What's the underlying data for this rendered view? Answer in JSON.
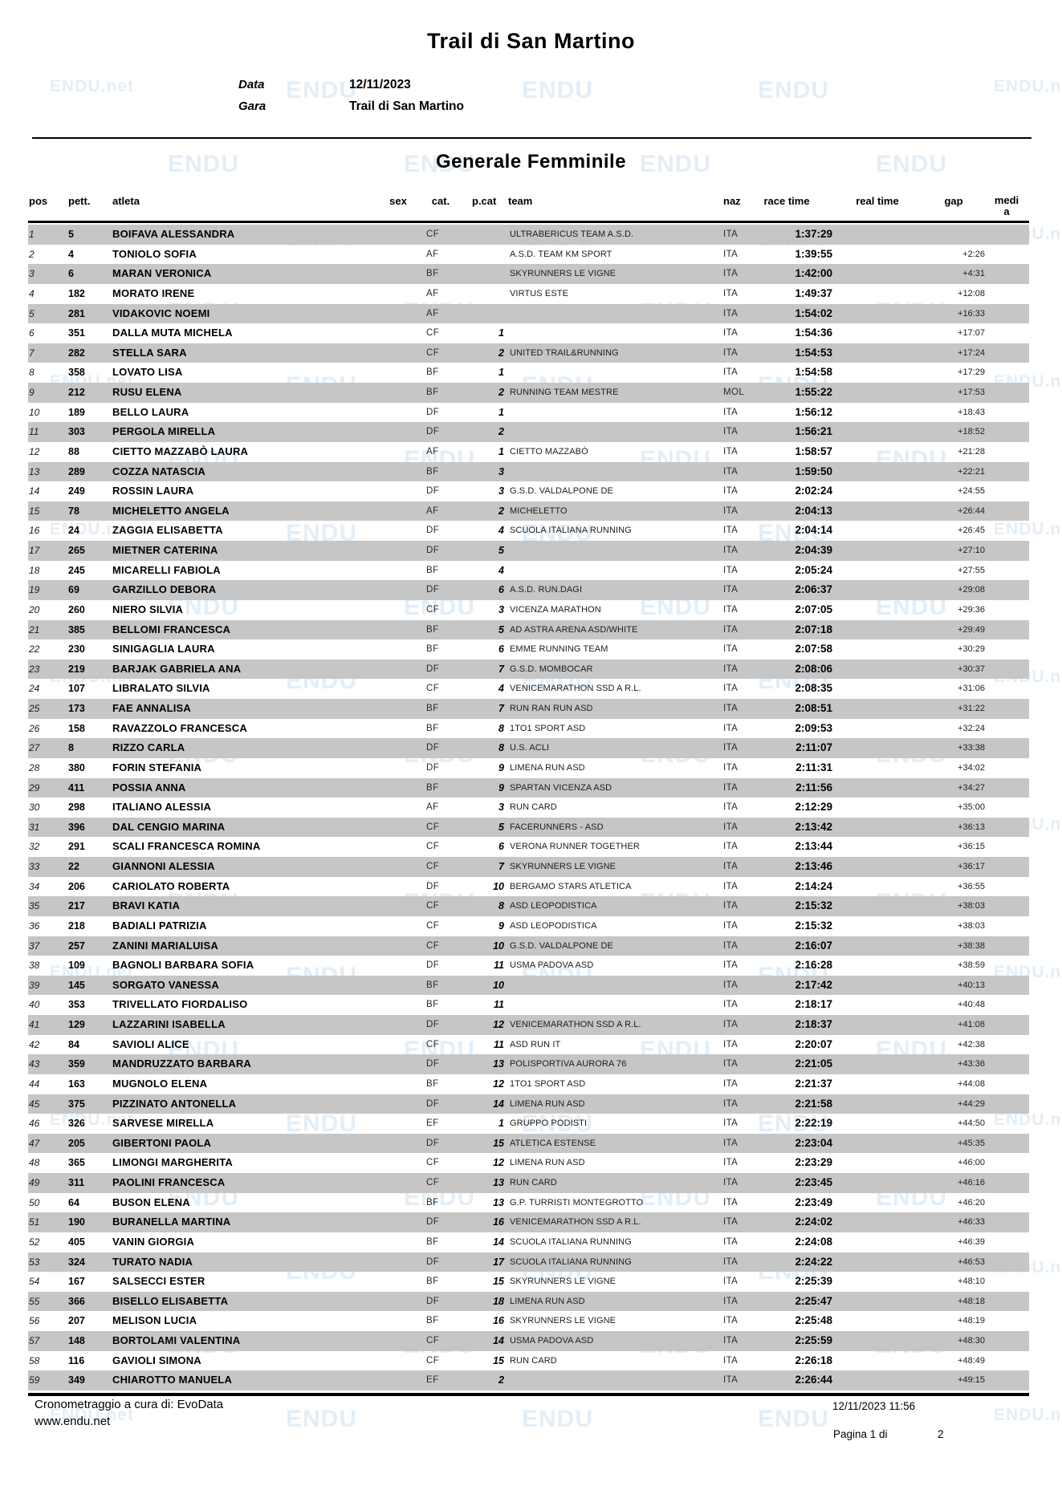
{
  "header": {
    "title": "Trail di San Martino",
    "data_label": "Data",
    "data_value": "12/11/2023",
    "gara_label": "Gara",
    "gara_value": "Trail di San Martino"
  },
  "section_title": "Generale Femminile",
  "watermark": {
    "primary": "ENDU",
    "secondary": "ENDU.net"
  },
  "table": {
    "columns": {
      "pos": "pos",
      "pett": "pett.",
      "atleta": "atleta",
      "sex": "sex",
      "cat": "cat.",
      "pcat": "p.cat",
      "team": "team",
      "naz": "naz",
      "race_time": "race time",
      "real_time": "real time",
      "gap": "gap",
      "media_line1": "medi",
      "media_line2": "a"
    },
    "rows": [
      [
        "1",
        "5",
        "BOIFAVA ALESSANDRA",
        "CF",
        "",
        "ULTRABERICUS TEAM A.S.D.",
        "ITA",
        "1:37:29",
        ""
      ],
      [
        "2",
        "4",
        "TONIOLO SOFIA",
        "AF",
        "",
        "A.S.D. TEAM KM SPORT",
        "ITA",
        "1:39:55",
        "+2:26"
      ],
      [
        "3",
        "6",
        "MARAN VERONICA",
        "BF",
        "",
        "SKYRUNNERS LE VIGNE",
        "ITA",
        "1:42:00",
        "+4:31"
      ],
      [
        "4",
        "182",
        "MORATO IRENE",
        "AF",
        "",
        "VIRTUS ESTE",
        "ITA",
        "1:49:37",
        "+12:08"
      ],
      [
        "5",
        "281",
        "VIDAKOVIC NOEMI",
        "AF",
        "",
        "",
        "ITA",
        "1:54:02",
        "+16:33"
      ],
      [
        "6",
        "351",
        "DALLA MUTA MICHELA",
        "CF",
        "1",
        "",
        "ITA",
        "1:54:36",
        "+17:07"
      ],
      [
        "7",
        "282",
        "STELLA SARA",
        "CF",
        "2",
        "UNITED TRAIL&RUNNING",
        "ITA",
        "1:54:53",
        "+17:24"
      ],
      [
        "8",
        "358",
        "LOVATO LISA",
        "BF",
        "1",
        "",
        "ITA",
        "1:54:58",
        "+17:29"
      ],
      [
        "9",
        "212",
        "RUSU ELENA",
        "BF",
        "2",
        "RUNNING TEAM MESTRE",
        "MOL",
        "1:55:22",
        "+17:53"
      ],
      [
        "10",
        "189",
        "BELLO LAURA",
        "DF",
        "1",
        "",
        "ITA",
        "1:56:12",
        "+18:43"
      ],
      [
        "11",
        "303",
        "PERGOLA MIRELLA",
        "DF",
        "2",
        "",
        "ITA",
        "1:56:21",
        "+18:52"
      ],
      [
        "12",
        "88",
        "CIETTO MAZZABÒ LAURA",
        "AF",
        "1",
        "CIETTO MAZZABÒ",
        "ITA",
        "1:58:57",
        "+21:28"
      ],
      [
        "13",
        "289",
        "COZZA NATASCIA",
        "BF",
        "3",
        "",
        "ITA",
        "1:59:50",
        "+22:21"
      ],
      [
        "14",
        "249",
        "ROSSIN LAURA",
        "DF",
        "3",
        "G.S.D. VALDALPONE DE",
        "ITA",
        "2:02:24",
        "+24:55"
      ],
      [
        "15",
        "78",
        "MICHELETTO ANGELA",
        "AF",
        "2",
        "MICHELETTO",
        "ITA",
        "2:04:13",
        "+26:44"
      ],
      [
        "16",
        "24",
        "ZAGGIA ELISABETTA",
        "DF",
        "4",
        "SCUOLA ITALIANA RUNNING",
        "ITA",
        "2:04:14",
        "+26:45"
      ],
      [
        "17",
        "265",
        "MIETNER CATERINA",
        "DF",
        "5",
        "",
        "ITA",
        "2:04:39",
        "+27:10"
      ],
      [
        "18",
        "245",
        "MICARELLI FABIOLA",
        "BF",
        "4",
        "",
        "ITA",
        "2:05:24",
        "+27:55"
      ],
      [
        "19",
        "69",
        "GARZILLO DEBORA",
        "DF",
        "6",
        "A.S.D. RUN.DAGI",
        "ITA",
        "2:06:37",
        "+29:08"
      ],
      [
        "20",
        "260",
        "NIERO SILVIA",
        "CF",
        "3",
        "VICENZA MARATHON",
        "ITA",
        "2:07:05",
        "+29:36"
      ],
      [
        "21",
        "385",
        "BELLOMI FRANCESCA",
        "BF",
        "5",
        "AD ASTRA ARENA ASD/WHITE",
        "ITA",
        "2:07:18",
        "+29:49"
      ],
      [
        "22",
        "230",
        "SINIGAGLIA LAURA",
        "BF",
        "6",
        "EMME RUNNING TEAM",
        "ITA",
        "2:07:58",
        "+30:29"
      ],
      [
        "23",
        "219",
        "BARJAK GABRIELA ANA",
        "DF",
        "7",
        "G.S.D. MOMBOCAR",
        "ITA",
        "2:08:06",
        "+30:37"
      ],
      [
        "24",
        "107",
        "LIBRALATO SILVIA",
        "CF",
        "4",
        "VENICEMARATHON SSD A R.L.",
        "ITA",
        "2:08:35",
        "+31:06"
      ],
      [
        "25",
        "173",
        "FAE ANNALISA",
        "BF",
        "7",
        "RUN RAN RUN ASD",
        "ITA",
        "2:08:51",
        "+31:22"
      ],
      [
        "26",
        "158",
        "RAVAZZOLO FRANCESCA",
        "BF",
        "8",
        "1TO1 SPORT ASD",
        "ITA",
        "2:09:53",
        "+32:24"
      ],
      [
        "27",
        "8",
        "RIZZO CARLA",
        "DF",
        "8",
        "U.S. ACLI",
        "ITA",
        "2:11:07",
        "+33:38"
      ],
      [
        "28",
        "380",
        "FORIN STEFANIA",
        "DF",
        "9",
        "LIMENA RUN ASD",
        "ITA",
        "2:11:31",
        "+34:02"
      ],
      [
        "29",
        "411",
        "POSSIA ANNA",
        "BF",
        "9",
        "SPARTAN VICENZA ASD",
        "ITA",
        "2:11:56",
        "+34:27"
      ],
      [
        "30",
        "298",
        "ITALIANO ALESSIA",
        "AF",
        "3",
        "RUN CARD",
        "ITA",
        "2:12:29",
        "+35:00"
      ],
      [
        "31",
        "396",
        "DAL CENGIO MARINA",
        "CF",
        "5",
        "FACERUNNERS - ASD",
        "ITA",
        "2:13:42",
        "+36:13"
      ],
      [
        "32",
        "291",
        "SCALI FRANCESCA ROMINA",
        "CF",
        "6",
        "VERONA RUNNER TOGETHER",
        "ITA",
        "2:13:44",
        "+36:15"
      ],
      [
        "33",
        "22",
        "GIANNONI ALESSIA",
        "CF",
        "7",
        "SKYRUNNERS LE VIGNE",
        "ITA",
        "2:13:46",
        "+36:17"
      ],
      [
        "34",
        "206",
        "CARIOLATO ROBERTA",
        "DF",
        "10",
        "BERGAMO STARS ATLETICA",
        "ITA",
        "2:14:24",
        "+36:55"
      ],
      [
        "35",
        "217",
        "BRAVI KATIA",
        "CF",
        "8",
        "ASD LEOPODISTICA",
        "ITA",
        "2:15:32",
        "+38:03"
      ],
      [
        "36",
        "218",
        "BADIALI PATRIZIA",
        "CF",
        "9",
        "ASD LEOPODISTICA",
        "ITA",
        "2:15:32",
        "+38:03"
      ],
      [
        "37",
        "257",
        "ZANINI MARIALUISA",
        "CF",
        "10",
        "G.S.D. VALDALPONE DE",
        "ITA",
        "2:16:07",
        "+38:38"
      ],
      [
        "38",
        "109",
        "BAGNOLI BARBARA SOFIA",
        "DF",
        "11",
        "USMA PADOVA ASD",
        "ITA",
        "2:16:28",
        "+38:59"
      ],
      [
        "39",
        "145",
        "SORGATO VANESSA",
        "BF",
        "10",
        "",
        "ITA",
        "2:17:42",
        "+40:13"
      ],
      [
        "40",
        "353",
        "TRIVELLATO FIORDALISO",
        "BF",
        "11",
        "",
        "ITA",
        "2:18:17",
        "+40:48"
      ],
      [
        "41",
        "129",
        "LAZZARINI ISABELLA",
        "DF",
        "12",
        "VENICEMARATHON SSD A R.L.",
        "ITA",
        "2:18:37",
        "+41:08"
      ],
      [
        "42",
        "84",
        "SAVIOLI ALICE",
        "CF",
        "11",
        "ASD RUN IT",
        "ITA",
        "2:20:07",
        "+42:38"
      ],
      [
        "43",
        "359",
        "MANDRUZZATO BARBARA",
        "DF",
        "13",
        "POLISPORTIVA AURORA 76",
        "ITA",
        "2:21:05",
        "+43:36"
      ],
      [
        "44",
        "163",
        "MUGNOLO ELENA",
        "BF",
        "12",
        "1TO1 SPORT ASD",
        "ITA",
        "2:21:37",
        "+44:08"
      ],
      [
        "45",
        "375",
        "PIZZINATO ANTONELLA",
        "DF",
        "14",
        "LIMENA RUN ASD",
        "ITA",
        "2:21:58",
        "+44:29"
      ],
      [
        "46",
        "326",
        "SARVESE MIRELLA",
        "EF",
        "1",
        "GRUPPO PODISTI",
        "ITA",
        "2:22:19",
        "+44:50"
      ],
      [
        "47",
        "205",
        "GIBERTONI PAOLA",
        "DF",
        "15",
        "ATLETICA ESTENSE",
        "ITA",
        "2:23:04",
        "+45:35"
      ],
      [
        "48",
        "365",
        "LIMONGI MARGHERITA",
        "CF",
        "12",
        "LIMENA RUN ASD",
        "ITA",
        "2:23:29",
        "+46:00"
      ],
      [
        "49",
        "311",
        "PAOLINI FRANCESCA",
        "CF",
        "13",
        "RUN CARD",
        "ITA",
        "2:23:45",
        "+46:16"
      ],
      [
        "50",
        "64",
        "BUSON ELENA",
        "BF",
        "13",
        "G.P. TURRISTI MONTEGROTTO",
        "ITA",
        "2:23:49",
        "+46:20"
      ],
      [
        "51",
        "190",
        "BURANELLA MARTINA",
        "DF",
        "16",
        "VENICEMARATHON SSD A R.L.",
        "ITA",
        "2:24:02",
        "+46:33"
      ],
      [
        "52",
        "405",
        "VANIN GIORGIA",
        "BF",
        "14",
        "SCUOLA ITALIANA RUNNING",
        "ITA",
        "2:24:08",
        "+46:39"
      ],
      [
        "53",
        "324",
        "TURATO NADIA",
        "DF",
        "17",
        "SCUOLA ITALIANA RUNNING",
        "ITA",
        "2:24:22",
        "+46:53"
      ],
      [
        "54",
        "167",
        "SALSECCI ESTER",
        "BF",
        "15",
        "SKYRUNNERS LE VIGNE",
        "ITA",
        "2:25:39",
        "+48:10"
      ],
      [
        "55",
        "366",
        "BISELLO ELISABETTA",
        "DF",
        "18",
        "LIMENA RUN ASD",
        "ITA",
        "2:25:47",
        "+48:18"
      ],
      [
        "56",
        "207",
        "MELISON LUCIA",
        "BF",
        "16",
        "SKYRUNNERS LE VIGNE",
        "ITA",
        "2:25:48",
        "+48:19"
      ],
      [
        "57",
        "148",
        "BORTOLAMI VALENTINA",
        "CF",
        "14",
        "USMA PADOVA ASD",
        "ITA",
        "2:25:59",
        "+48:30"
      ],
      [
        "58",
        "116",
        "GAVIOLI SIMONA",
        "CF",
        "15",
        "RUN CARD",
        "ITA",
        "2:26:18",
        "+48:49"
      ],
      [
        "59",
        "349",
        "CHIAROTTO MANUELA",
        "EF",
        "2",
        "",
        "ITA",
        "2:26:44",
        "+49:15"
      ]
    ]
  },
  "footer": {
    "timing": "Cronometraggio a cura di: EvoData",
    "site": "www.endu.net",
    "datetime": "12/11/2023 11:56",
    "page_label": "Pagina 1 di",
    "page_total": "2"
  }
}
